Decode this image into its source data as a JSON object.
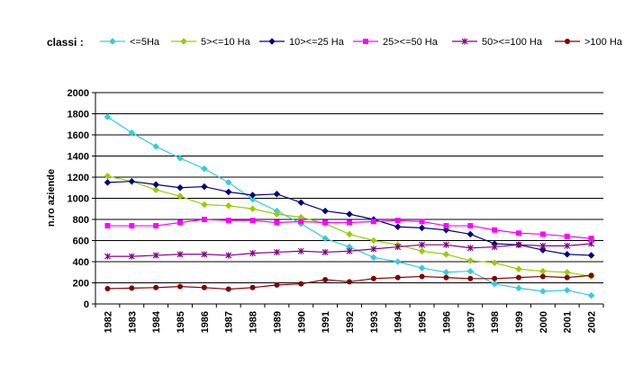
{
  "chart_data": {
    "type": "line",
    "title": "",
    "legend_title": "classi :",
    "xlabel": "",
    "ylabel": "n.ro aziende",
    "ylim": [
      0,
      2000
    ],
    "yticks": [
      0,
      200,
      400,
      600,
      800,
      1000,
      1200,
      1400,
      1600,
      1800,
      2000
    ],
    "grid": "horizontal",
    "legend_position": "top",
    "categories": [
      "1982",
      "1983",
      "1984",
      "1985",
      "1986",
      "1987",
      "1988",
      "1989",
      "1990",
      "1991",
      "1992",
      "1993",
      "1994",
      "1995",
      "1996",
      "1997",
      "1998",
      "1999",
      "2000",
      "2001",
      "2002"
    ],
    "series": [
      {
        "name": "<=5Ha",
        "color": "#33ccdd",
        "marker": "diamond",
        "values": [
          1770,
          1620,
          1490,
          1380,
          1280,
          1150,
          990,
          880,
          760,
          620,
          540,
          440,
          400,
          340,
          300,
          310,
          190,
          150,
          120,
          130,
          80
        ]
      },
      {
        "name": "5><=10 Ha",
        "color": "#99cc00",
        "marker": "diamond",
        "values": [
          1210,
          1160,
          1080,
          1020,
          940,
          930,
          900,
          850,
          820,
          760,
          660,
          600,
          560,
          500,
          470,
          410,
          390,
          330,
          310,
          300,
          260
        ]
      },
      {
        "name": "10><=25 Ha",
        "color": "#000080",
        "marker": "diamond",
        "values": [
          1150,
          1160,
          1130,
          1100,
          1110,
          1060,
          1030,
          1040,
          960,
          880,
          850,
          800,
          730,
          720,
          700,
          660,
          570,
          560,
          510,
          470,
          460
        ]
      },
      {
        "name": "25><=50 Ha",
        "color": "#ff00ff",
        "marker": "square",
        "values": [
          740,
          740,
          740,
          770,
          800,
          790,
          790,
          770,
          780,
          770,
          770,
          780,
          790,
          780,
          740,
          740,
          700,
          670,
          660,
          640,
          620
        ]
      },
      {
        "name": "50><=100 Ha",
        "color": "#800080",
        "marker": "star",
        "values": [
          450,
          450,
          460,
          470,
          470,
          460,
          480,
          490,
          500,
          490,
          500,
          520,
          540,
          560,
          560,
          530,
          540,
          560,
          550,
          550,
          570
        ]
      },
      {
        "name": ">100 Ha",
        "color": "#800000",
        "marker": "circle",
        "values": [
          145,
          150,
          155,
          165,
          155,
          140,
          155,
          180,
          190,
          230,
          210,
          240,
          250,
          260,
          250,
          240,
          240,
          250,
          260,
          250,
          270
        ]
      }
    ]
  }
}
